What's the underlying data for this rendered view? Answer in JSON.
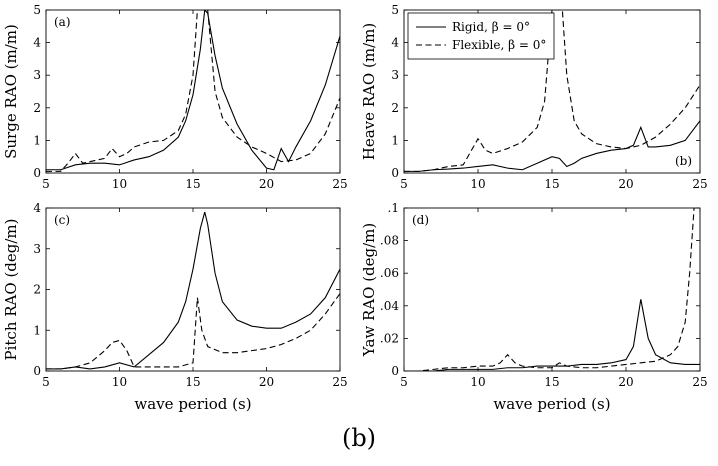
{
  "figure": {
    "caption": "(b)"
  },
  "legend": [
    {
      "label": "Rigid, β = 0°",
      "dash": "solid"
    },
    {
      "label": "Flexible, β = 0°",
      "dash": "dashed"
    }
  ],
  "chart_data": [
    {
      "type": "line",
      "panel": "(a)",
      "xlabel": "",
      "ylabel": "Surge RAO (m/m)",
      "xlim": [
        5,
        25
      ],
      "ylim": [
        0,
        5
      ],
      "xticks": [
        5,
        10,
        15,
        20,
        25
      ],
      "yticks": [
        0,
        1,
        2,
        3,
        4,
        5
      ],
      "series": [
        {
          "name": "Rigid, β = 0°",
          "x": [
            5,
            6,
            7,
            8,
            9,
            10,
            11,
            12,
            13,
            14,
            14.5,
            15,
            15.5,
            15.8,
            16,
            16.5,
            17,
            18,
            19,
            20,
            20.5,
            21,
            21.5,
            22,
            23,
            24,
            25
          ],
          "y": [
            0.1,
            0.1,
            0.25,
            0.3,
            0.3,
            0.25,
            0.4,
            0.5,
            0.7,
            1.1,
            1.6,
            2.4,
            3.8,
            5.0,
            4.9,
            3.6,
            2.6,
            1.5,
            0.7,
            0.15,
            0.1,
            0.75,
            0.35,
            0.8,
            1.6,
            2.7,
            4.2
          ]
        },
        {
          "name": "Flexible, β = 0°",
          "x": [
            5,
            6,
            6.5,
            7,
            7.5,
            8,
            9,
            9.5,
            10,
            10.5,
            11,
            12,
            13,
            14,
            14.5,
            15,
            15.3,
            16,
            16.5,
            17,
            18,
            19,
            20,
            21,
            22,
            23,
            24,
            25
          ],
          "y": [
            0.05,
            0.05,
            0.3,
            0.6,
            0.3,
            0.35,
            0.45,
            0.75,
            0.5,
            0.6,
            0.8,
            0.95,
            1.0,
            1.3,
            1.8,
            3.0,
            5.0,
            5.0,
            2.5,
            1.7,
            1.1,
            0.8,
            0.6,
            0.35,
            0.4,
            0.6,
            1.2,
            2.3
          ]
        }
      ]
    },
    {
      "type": "line",
      "panel": "(b)",
      "xlabel": "",
      "ylabel": "Heave RAO (m/m)",
      "xlim": [
        5,
        25
      ],
      "ylim": [
        0,
        5
      ],
      "xticks": [
        5,
        10,
        15,
        20,
        25
      ],
      "yticks": [
        0,
        1,
        2,
        3,
        4,
        5
      ],
      "series": [
        {
          "name": "Rigid, β = 0°",
          "x": [
            5,
            6,
            7,
            8,
            9,
            10,
            11,
            12,
            13,
            14,
            15,
            15.5,
            16,
            16.5,
            17,
            18,
            19,
            20,
            20.5,
            21,
            21.5,
            22,
            23,
            24,
            25
          ],
          "y": [
            0.05,
            0.05,
            0.1,
            0.12,
            0.15,
            0.2,
            0.25,
            0.15,
            0.1,
            0.3,
            0.5,
            0.45,
            0.2,
            0.3,
            0.45,
            0.6,
            0.7,
            0.75,
            0.85,
            1.4,
            0.8,
            0.8,
            0.85,
            1.0,
            1.6
          ]
        },
        {
          "name": "Flexible, β = 0°",
          "x": [
            5,
            6,
            7,
            8,
            9,
            9.5,
            10,
            10.5,
            11,
            12,
            13,
            14,
            14.5,
            15,
            15.3,
            15.7,
            16,
            16.5,
            17,
            18,
            19,
            20,
            21,
            22,
            23,
            24,
            25
          ],
          "y": [
            0.05,
            0.05,
            0.1,
            0.2,
            0.25,
            0.65,
            1.05,
            0.7,
            0.6,
            0.75,
            0.95,
            1.4,
            2.2,
            5.0,
            5.0,
            5.0,
            3.0,
            1.6,
            1.2,
            0.9,
            0.8,
            0.75,
            0.85,
            1.1,
            1.5,
            2.0,
            2.7
          ]
        }
      ]
    },
    {
      "type": "line",
      "panel": "(c)",
      "xlabel": "wave period (s)",
      "ylabel": "Pitch RAO (deg/m)",
      "xlim": [
        5,
        25
      ],
      "ylim": [
        0,
        4
      ],
      "xticks": [
        5,
        10,
        15,
        20,
        25
      ],
      "yticks": [
        0,
        1,
        2,
        3,
        4
      ],
      "series": [
        {
          "name": "Rigid, β = 0°",
          "x": [
            5,
            6,
            7,
            8,
            9,
            10,
            11,
            12,
            13,
            14,
            14.5,
            15,
            15.5,
            15.8,
            16,
            16.5,
            17,
            18,
            19,
            20,
            21,
            22,
            23,
            24,
            25
          ],
          "y": [
            0.05,
            0.05,
            0.1,
            0.05,
            0.1,
            0.2,
            0.1,
            0.4,
            0.7,
            1.2,
            1.7,
            2.5,
            3.5,
            3.9,
            3.6,
            2.4,
            1.7,
            1.25,
            1.1,
            1.05,
            1.05,
            1.2,
            1.4,
            1.8,
            2.5
          ]
        },
        {
          "name": "Flexible, β = 0°",
          "x": [
            5,
            6,
            7,
            7.5,
            8,
            9,
            9.5,
            10,
            10.5,
            11,
            12,
            13,
            14,
            15,
            15.3,
            15.6,
            16,
            17,
            18,
            19,
            20,
            21,
            22,
            23,
            24,
            25
          ],
          "y": [
            0.05,
            0.05,
            0.1,
            0.15,
            0.2,
            0.5,
            0.7,
            0.75,
            0.5,
            0.1,
            0.1,
            0.1,
            0.1,
            0.2,
            1.8,
            1.0,
            0.6,
            0.45,
            0.45,
            0.5,
            0.55,
            0.65,
            0.8,
            1.0,
            1.4,
            1.9
          ]
        }
      ]
    },
    {
      "type": "line",
      "panel": "(d)",
      "xlabel": "wave period (s)",
      "ylabel": "Yaw RAO (deg/m)",
      "xlim": [
        5,
        25
      ],
      "ylim": [
        0,
        0.1
      ],
      "xticks": [
        5,
        10,
        15,
        20,
        25
      ],
      "yticks": [
        0,
        0.02,
        0.04,
        0.06,
        0.08,
        0.1
      ],
      "series": [
        {
          "name": "Rigid, β = 0°",
          "x": [
            5,
            6,
            7,
            8,
            9,
            10,
            11,
            12,
            13,
            14,
            15,
            16,
            17,
            18,
            19,
            20,
            20.5,
            21,
            21.5,
            22,
            23,
            24,
            25
          ],
          "y": [
            0.0,
            0.0,
            0.0,
            0.001,
            0.001,
            0.001,
            0.001,
            0.002,
            0.002,
            0.003,
            0.003,
            0.003,
            0.004,
            0.004,
            0.005,
            0.007,
            0.015,
            0.044,
            0.02,
            0.01,
            0.005,
            0.004,
            0.004
          ]
        },
        {
          "name": "Flexible, β = 0°",
          "x": [
            5,
            6,
            7,
            8,
            9,
            10,
            11,
            11.5,
            12,
            12.5,
            13,
            14,
            15,
            15.5,
            16,
            17,
            18,
            19,
            20,
            21,
            22,
            23,
            23.5,
            24,
            24.3,
            24.6,
            25
          ],
          "y": [
            0.0,
            0.0,
            0.001,
            0.002,
            0.002,
            0.003,
            0.003,
            0.005,
            0.01,
            0.005,
            0.003,
            0.002,
            0.002,
            0.005,
            0.003,
            0.002,
            0.002,
            0.003,
            0.004,
            0.005,
            0.006,
            0.01,
            0.015,
            0.03,
            0.06,
            0.1,
            0.1
          ]
        }
      ]
    }
  ]
}
